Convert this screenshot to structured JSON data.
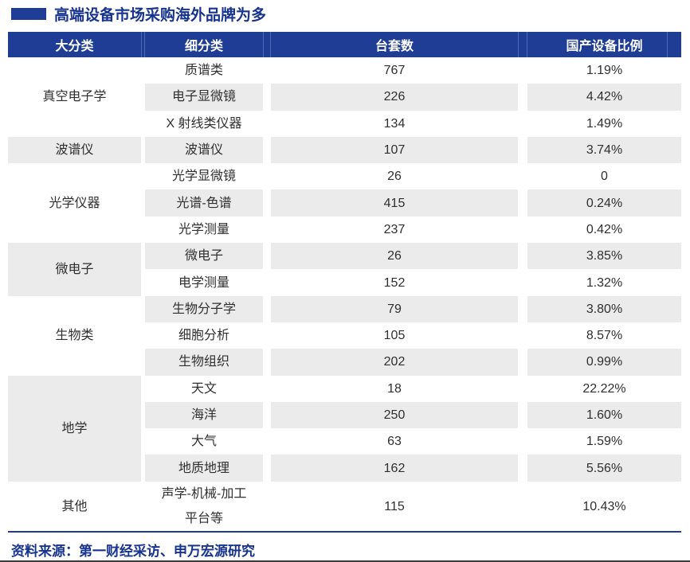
{
  "title": {
    "text": "高端设备市场采购海外品牌为多"
  },
  "table": {
    "headers": [
      "大分类",
      "细分类",
      "台套数",
      "国产设备比例"
    ],
    "groups": [
      {
        "category": "真空电子学",
        "rows": [
          [
            "质谱类",
            "767",
            "1.19%"
          ],
          [
            "电子显微镜",
            "226",
            "4.42%"
          ],
          [
            "X 射线类仪器",
            "134",
            "1.49%"
          ]
        ]
      },
      {
        "category": "波谱仪",
        "rows": [
          [
            "波谱仪",
            "107",
            "3.74%"
          ]
        ]
      },
      {
        "category": "光学仪器",
        "rows": [
          [
            "光学显微镜",
            "26",
            "0"
          ],
          [
            "光谱-色谱",
            "415",
            "0.24%"
          ],
          [
            "光学测量",
            "237",
            "0.42%"
          ]
        ]
      },
      {
        "category": "微电子",
        "rows": [
          [
            "微电子",
            "26",
            "3.85%"
          ],
          [
            "电学测量",
            "152",
            "1.32%"
          ]
        ]
      },
      {
        "category": "生物类",
        "rows": [
          [
            "生物分子学",
            "79",
            "3.80%"
          ],
          [
            "细胞分析",
            "105",
            "8.57%"
          ],
          [
            "生物组织",
            "202",
            "0.99%"
          ]
        ]
      },
      {
        "category": "地学",
        "rows": [
          [
            "天文",
            "18",
            "22.22%"
          ],
          [
            "海洋",
            "250",
            "1.60%"
          ],
          [
            "大气",
            "63",
            "1.59%"
          ],
          [
            "地质地理",
            "162",
            "5.56%"
          ]
        ]
      },
      {
        "category": "其他",
        "rows": [
          [
            "声学-机械-加工\n平台等",
            "115",
            "10.43%"
          ]
        ]
      }
    ]
  },
  "footer": {
    "source": "资料来源：第一财经采访、申万宏源研究"
  },
  "colors": {
    "header_bg": "#1f3d94",
    "accent_text": "#173390",
    "stripe": "#ebebeb",
    "body_text": "#2f2f2f",
    "header_divider": "#4e69b6"
  }
}
